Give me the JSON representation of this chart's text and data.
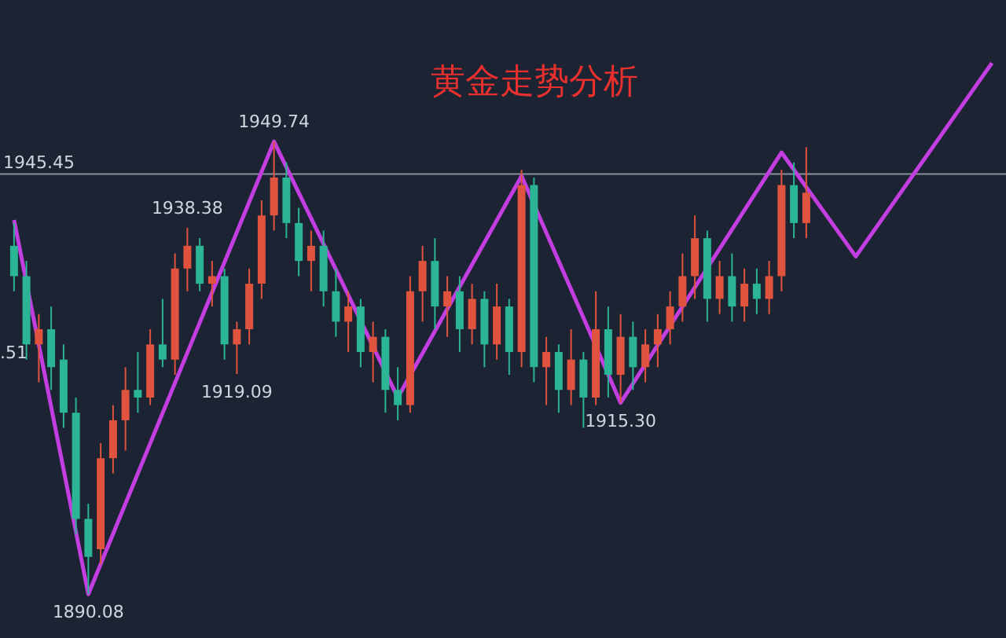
{
  "chart_data": {
    "type": "candlestick",
    "title": "黄金走势分析",
    "categories": [
      null,
      null,
      null,
      null,
      null,
      null,
      null,
      null,
      null,
      null,
      null,
      null,
      null,
      null,
      null,
      null,
      null,
      null,
      null,
      null,
      null,
      null,
      null,
      null,
      null,
      null,
      null,
      null,
      null,
      null,
      null,
      null,
      null,
      null,
      null,
      null,
      null,
      null,
      null,
      null,
      null,
      null,
      null,
      null,
      null,
      null,
      null,
      null,
      null,
      null,
      null,
      null,
      null,
      null,
      null,
      null,
      null,
      null,
      null,
      null,
      null,
      null,
      null,
      null,
      null,
      null,
      null,
      null,
      null,
      null,
      null,
      null,
      null,
      null,
      null,
      null,
      null,
      null,
      null,
      null
    ],
    "ohlc": [
      [
        1936,
        1939,
        1930,
        1932
      ],
      [
        1932,
        1934,
        1921,
        1923
      ],
      [
        1923,
        1927,
        1918,
        1925
      ],
      [
        1925,
        1928,
        1917,
        1920
      ],
      [
        1921,
        1923,
        1912,
        1914
      ],
      [
        1914,
        1916,
        1898,
        1900
      ],
      [
        1900,
        1902,
        1890.08,
        1895
      ],
      [
        1896,
        1910,
        1894,
        1908
      ],
      [
        1908,
        1915,
        1906,
        1913
      ],
      [
        1913,
        1920,
        1909,
        1917
      ],
      [
        1917,
        1922,
        1914,
        1916
      ],
      [
        1916,
        1925,
        1915,
        1923
      ],
      [
        1923,
        1929,
        1920,
        1921
      ],
      [
        1921,
        1935,
        1919,
        1933
      ],
      [
        1933,
        1938.38,
        1930,
        1936
      ],
      [
        1936,
        1937,
        1930,
        1931
      ],
      [
        1931,
        1934,
        1928,
        1932
      ],
      [
        1932,
        1933,
        1921,
        1923
      ],
      [
        1923,
        1926,
        1919.09,
        1925
      ],
      [
        1925,
        1933,
        1923,
        1931
      ],
      [
        1931,
        1942,
        1929,
        1940
      ],
      [
        1940,
        1949.74,
        1938,
        1945
      ],
      [
        1945,
        1947,
        1937,
        1939
      ],
      [
        1939,
        1941,
        1932,
        1934
      ],
      [
        1934,
        1938,
        1930,
        1936
      ],
      [
        1936,
        1938,
        1928,
        1930
      ],
      [
        1930,
        1933,
        1924,
        1926
      ],
      [
        1926,
        1930,
        1922,
        1928
      ],
      [
        1928,
        1929,
        1920,
        1922
      ],
      [
        1922,
        1926,
        1918,
        1924
      ],
      [
        1924,
        1925,
        1914,
        1917
      ],
      [
        1917,
        1920,
        1913,
        1915
      ],
      [
        1915,
        1932,
        1914,
        1930
      ],
      [
        1930,
        1936,
        1926,
        1934
      ],
      [
        1934,
        1937,
        1925,
        1928
      ],
      [
        1928,
        1932,
        1924,
        1930
      ],
      [
        1930,
        1932,
        1922,
        1925
      ],
      [
        1925,
        1931,
        1923,
        1929
      ],
      [
        1929,
        1930,
        1920,
        1923
      ],
      [
        1923,
        1931,
        1921,
        1928
      ],
      [
        1928,
        1929,
        1919,
        1922
      ],
      [
        1922,
        1946,
        1920,
        1944
      ],
      [
        1944,
        1945,
        1918,
        1920
      ],
      [
        1920,
        1924,
        1915,
        1922
      ],
      [
        1922,
        1923,
        1914,
        1917
      ],
      [
        1917,
        1925,
        1915,
        1921
      ],
      [
        1921,
        1922,
        1912,
        1916
      ],
      [
        1916,
        1930,
        1915,
        1925
      ],
      [
        1925,
        1928,
        1916,
        1919
      ],
      [
        1919,
        1927,
        1915.3,
        1924
      ],
      [
        1924,
        1926,
        1917,
        1920
      ],
      [
        1920,
        1925,
        1918,
        1923
      ],
      [
        1923,
        1927,
        1920,
        1925
      ],
      [
        1925,
        1930,
        1923,
        1928
      ],
      [
        1928,
        1935,
        1926,
        1932
      ],
      [
        1932,
        1940,
        1929,
        1937
      ],
      [
        1937,
        1938,
        1926,
        1929
      ],
      [
        1929,
        1934,
        1927,
        1932
      ],
      [
        1932,
        1935,
        1926,
        1928
      ],
      [
        1928,
        1933,
        1926,
        1931
      ],
      [
        1931,
        1933,
        1927,
        1929
      ],
      [
        1929,
        1934,
        1927,
        1932
      ],
      [
        1932,
        1946,
        1930,
        1944
      ],
      [
        1944,
        1947,
        1937,
        1939
      ],
      [
        1939,
        1949,
        1937,
        1943
      ],
      null,
      null,
      null,
      null,
      null,
      null,
      null,
      null,
      null,
      null,
      null,
      null,
      null,
      null,
      null
    ],
    "colors": [
      "#2bb594",
      "#2bb594",
      "#e0533e",
      "#2bb594",
      "#2bb594",
      "#2bb594",
      "#2bb594",
      "#e0533e",
      "#e0533e",
      "#e0533e",
      "#2bb594",
      "#e0533e",
      "#2bb594",
      "#e0533e",
      "#e0533e",
      "#2bb594",
      "#e0533e",
      "#2bb594",
      "#e0533e",
      "#e0533e",
      "#e0533e",
      "#e0533e",
      "#2bb594",
      "#2bb594",
      "#e0533e",
      "#2bb594",
      "#2bb594",
      "#e0533e",
      "#2bb594",
      "#e0533e",
      "#2bb594",
      "#2bb594",
      "#e0533e",
      "#e0533e",
      "#2bb594",
      "#e0533e",
      "#2bb594",
      "#e0533e",
      "#2bb594",
      "#e0533e",
      "#2bb594",
      "#e0533e",
      "#2bb594",
      "#e0533e",
      "#2bb594",
      "#e0533e",
      "#2bb594",
      "#e0533e",
      "#2bb594",
      "#e0533e",
      "#2bb594",
      "#e0533e",
      "#e0533e",
      "#e0533e",
      "#e0533e",
      "#e0533e",
      "#2bb594",
      "#e0533e",
      "#2bb594",
      "#e0533e",
      "#2bb594",
      "#e0533e",
      "#e0533e",
      "#2bb594",
      "#e0533e",
      null,
      null,
      null,
      null,
      null,
      null,
      null,
      null,
      null,
      null,
      null,
      null,
      null,
      null,
      null
    ],
    "series": [
      {
        "type": "line",
        "color": "#c23ee0",
        "values": [
          1939.4,
          null,
          null,
          null,
          null,
          null,
          1890.08,
          null,
          null,
          null,
          null,
          null,
          null,
          null,
          null,
          null,
          null,
          null,
          null,
          null,
          null,
          1949.74,
          null,
          null,
          null,
          null,
          null,
          null,
          null,
          null,
          null,
          1916.0,
          null,
          null,
          null,
          null,
          null,
          null,
          null,
          null,
          null,
          1945.2,
          null,
          null,
          null,
          null,
          null,
          null,
          null,
          1915.3,
          null,
          null,
          null,
          null,
          null,
          null,
          null,
          null,
          null,
          null,
          null,
          null,
          1948.3,
          null,
          null,
          null,
          null,
          null,
          1934.6,
          null,
          null,
          null,
          null,
          null,
          null,
          null,
          null,
          null,
          null,
          1960.1
        ],
        "value_labels": [
          null,
          null,
          null,
          null,
          null,
          null,
          "1890.08",
          null,
          null,
          null,
          null,
          null,
          null,
          null,
          null,
          null,
          null,
          null,
          null,
          null,
          null,
          "1949.74",
          null,
          null,
          null,
          null,
          null,
          null,
          null,
          null,
          null,
          null,
          null,
          null,
          null,
          null,
          null,
          null,
          null,
          null,
          null,
          null,
          null,
          null,
          null,
          null,
          null,
          null,
          null,
          "1915.30",
          null,
          null,
          null,
          null,
          null,
          null,
          null,
          null,
          null,
          null,
          null,
          null,
          null,
          null,
          null,
          null,
          null,
          null,
          null,
          null,
          null,
          null,
          null,
          null,
          null,
          null,
          null,
          null,
          null,
          null
        ]
      }
    ],
    "ylim": [
      1884.3,
      1968.4
    ],
    "tick_labels": false,
    "ref_lines": [
      {
        "axis": "y",
        "value": 1945.45,
        "label": "1945.45",
        "color": "#8a8f9c"
      }
    ],
    "annotations": [
      {
        "text": "1938.38",
        "y": 1938.38
      },
      {
        "text": "1919.09",
        "y": 1919.09
      },
      ".51"
    ]
  }
}
